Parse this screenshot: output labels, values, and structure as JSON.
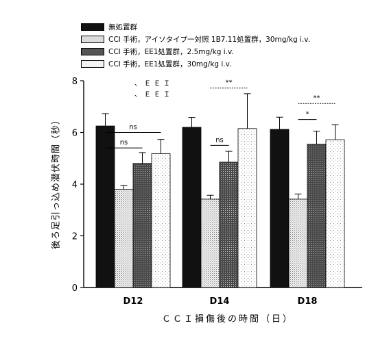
{
  "colors": {
    "black": "#111111",
    "ink": "#000000",
    "light_gray": "#e8e8e8",
    "dark_gray": "#555555",
    "dots": "#f4f4f4"
  },
  "chart_data": {
    "type": "bar",
    "categories": [
      "D12",
      "D14",
      "D18"
    ],
    "ylim": [
      0,
      8
    ],
    "yticks": [
      0,
      2,
      4,
      6,
      8
    ],
    "ylabel": "後ろ足引っ込め潜伏時間（秒）",
    "xlabel": "ＣＣＩ損傷後の時間（日）",
    "notes": [
      "、ＥＥＩ",
      "、ＥＥＩ"
    ],
    "series": [
      {
        "name": "無処置群",
        "pattern": "solid",
        "values": [
          6.25,
          6.2,
          6.12
        ],
        "errors": [
          0.48,
          0.38,
          0.47
        ]
      },
      {
        "name": "CCI 手術，アイソタイプ一対照 1B7.11処置群，30mg/kg i.v.",
        "pattern": "fine-dots",
        "values": [
          3.8,
          3.42,
          3.42
        ],
        "errors": [
          0.15,
          0.15,
          0.2
        ]
      },
      {
        "name": "CCI 手術，EE1処置群，2.5mg/kg i.v.",
        "pattern": "dark-stipple",
        "values": [
          4.8,
          4.85,
          5.55
        ],
        "errors": [
          0.42,
          0.42,
          0.5
        ]
      },
      {
        "name": "CCI 手術，EE1処置群，30mg/kg i.v.",
        "pattern": "sparse-dots",
        "values": [
          5.18,
          6.15,
          5.72
        ],
        "errors": [
          0.55,
          1.35,
          0.58
        ]
      }
    ],
    "annotations": [
      {
        "group": 0,
        "from": 0,
        "to": 3,
        "level": 6.0,
        "label": "ns",
        "style": "solid"
      },
      {
        "group": 0,
        "from": 0,
        "to": 2,
        "level": 5.4,
        "label": "ns",
        "style": "solid"
      },
      {
        "group": 1,
        "from": 1,
        "to": 3,
        "level": 7.72,
        "label": "**",
        "style": "dotted"
      },
      {
        "group": 1,
        "from": 1,
        "to": 2,
        "level": 5.5,
        "label": "ns",
        "style": "solid"
      },
      {
        "group": 2,
        "from": 1,
        "to": 3,
        "level": 7.12,
        "label": "**",
        "style": "dotted"
      },
      {
        "group": 2,
        "from": 1,
        "to": 2,
        "level": 6.5,
        "label": "*",
        "style": "solid"
      }
    ]
  }
}
